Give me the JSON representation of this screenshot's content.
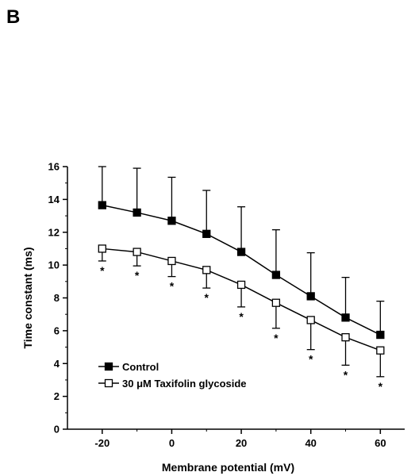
{
  "panel_label": "B",
  "chart_data": {
    "type": "line",
    "x": [
      -20,
      -10,
      0,
      10,
      20,
      30,
      40,
      50,
      60
    ],
    "xlabel": "Membrane potential (mV)",
    "ylabel": "Time constant (ms)",
    "xticks": [
      -20,
      0,
      20,
      40,
      60
    ],
    "xlim": [
      -30,
      67
    ],
    "ylim": [
      0,
      16
    ],
    "yticks": [
      0,
      2,
      4,
      6,
      8,
      10,
      12,
      14,
      16
    ],
    "legend_position": "bottom-left",
    "series": [
      {
        "name": "Control",
        "marker": "filled-square",
        "color": "#000000",
        "values": [
          13.65,
          13.2,
          12.7,
          11.9,
          10.8,
          9.4,
          8.1,
          6.8,
          5.75
        ],
        "error_up": [
          2.35,
          2.7,
          2.65,
          2.65,
          2.75,
          2.75,
          2.65,
          2.45,
          2.05
        ]
      },
      {
        "name": "30 μM Taxifolin glycoside",
        "marker": "open-square",
        "color": "#000000",
        "values": [
          11.0,
          10.8,
          10.25,
          9.7,
          8.8,
          7.7,
          6.65,
          5.6,
          4.8
        ],
        "error_down": [
          0.75,
          0.85,
          0.95,
          1.1,
          1.35,
          1.55,
          1.8,
          1.7,
          1.6
        ]
      }
    ],
    "annotations": [
      {
        "x": -20,
        "text": "*"
      },
      {
        "x": -10,
        "text": "*"
      },
      {
        "x": 0,
        "text": "*"
      },
      {
        "x": 10,
        "text": "*"
      },
      {
        "x": 20,
        "text": "*"
      },
      {
        "x": 30,
        "text": "*"
      },
      {
        "x": 40,
        "text": "*"
      },
      {
        "x": 50,
        "text": "*"
      },
      {
        "x": 60,
        "text": "*"
      }
    ]
  }
}
